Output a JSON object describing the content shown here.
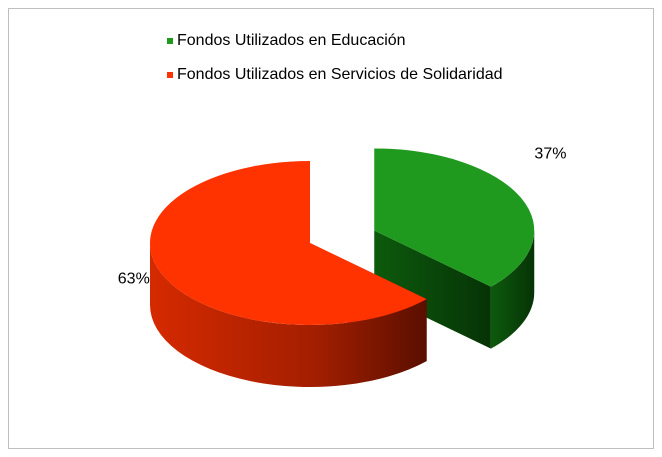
{
  "chart_data": {
    "type": "pie",
    "categories": [
      "Fondos Utilizados en Educación",
      "Fondos Utilizados en Servicios de Solidaridad"
    ],
    "values": [
      37,
      63
    ],
    "value_labels": [
      "37%",
      "63%"
    ],
    "colors": [
      "#1f9a1f",
      "#ff3300"
    ],
    "exploded": [
      true,
      false
    ]
  }
}
